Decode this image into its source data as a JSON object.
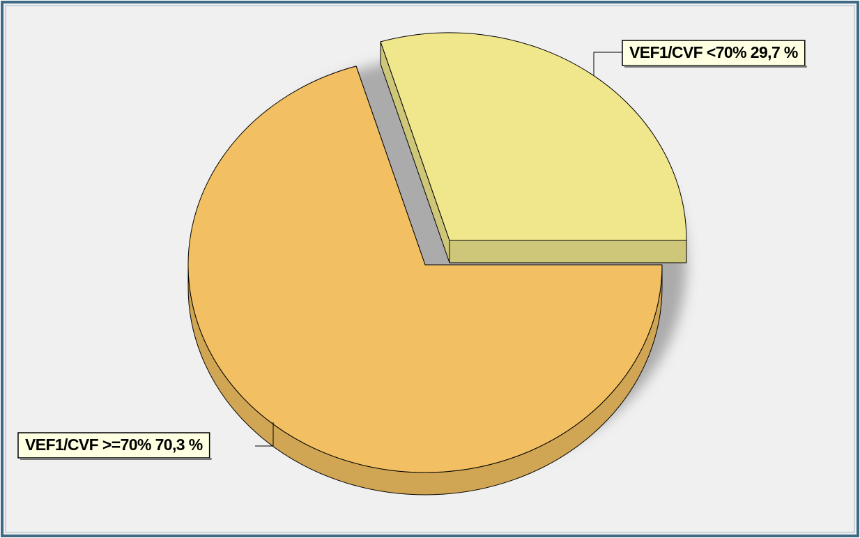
{
  "chart_data": {
    "type": "pie",
    "categories": [
      "VEF1/CVF <70%",
      "VEF1/CVF >=70%"
    ],
    "values": [
      29.7,
      70.3
    ],
    "value_labels": [
      "29,7 %",
      "70,3 %"
    ],
    "colors": [
      "#f0e68c",
      "#f2c062"
    ]
  }
}
